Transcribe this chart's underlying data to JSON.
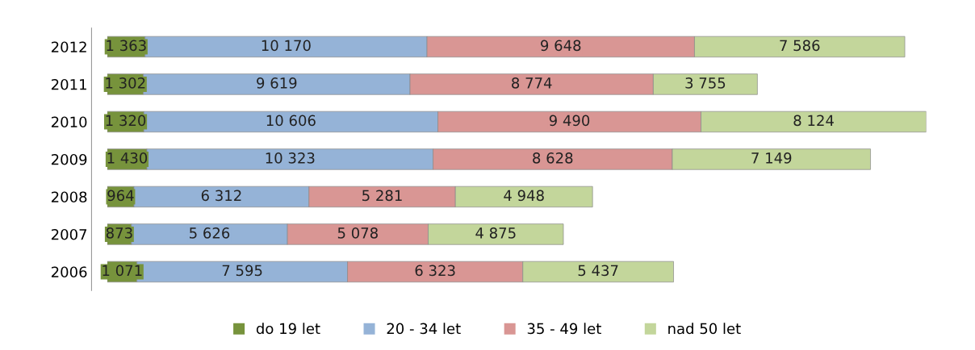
{
  "chart_data": {
    "type": "bar",
    "orientation": "horizontal",
    "stacked": true,
    "legend": "bottom",
    "categories": [
      "2012",
      "2011",
      "2010",
      "2009",
      "2008",
      "2007",
      "2006"
    ],
    "series": [
      {
        "name": "do 19 let",
        "color": "#77933c",
        "values": [
          1363,
          1302,
          1320,
          1430,
          964,
          873,
          1071
        ],
        "value_labels": [
          "1 363",
          "1 302",
          "1 320",
          "1 430",
          "964",
          "873",
          "1 071"
        ]
      },
      {
        "name": "20 - 34 let",
        "color": "#95b3d7",
        "values": [
          10170,
          9619,
          10606,
          10323,
          6312,
          5626,
          7595
        ],
        "value_labels": [
          "10 170",
          "9 619",
          "10 606",
          "10 323",
          "6 312",
          "5 626",
          "7 595"
        ]
      },
      {
        "name": "35 - 49 let",
        "color": "#d99694",
        "values": [
          9648,
          8774,
          9490,
          8628,
          5281,
          5078,
          6323
        ],
        "value_labels": [
          "9 648",
          "8 774",
          "9 490",
          "8 628",
          "5 281",
          "5 078",
          "6 323"
        ]
      },
      {
        "name": "nad 50 let",
        "color": "#c3d69b",
        "values": [
          7586,
          3755,
          8124,
          7149,
          4948,
          4875,
          5437
        ],
        "value_labels": [
          "7 586",
          "3 755",
          "8 124",
          "7 149",
          "4 948",
          "4 875",
          "5 437"
        ]
      }
    ]
  }
}
